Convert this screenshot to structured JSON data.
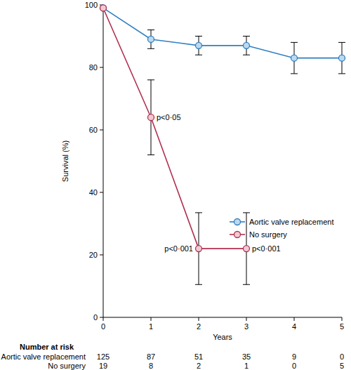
{
  "chart_data": {
    "type": "line",
    "x_label": "Years",
    "y_label": "Survival (%)",
    "xlim": [
      0,
      5
    ],
    "xticks": [
      0,
      1,
      2,
      3,
      4,
      5
    ],
    "ylim": [
      0,
      100
    ],
    "yticks": [
      0,
      20,
      40,
      60,
      80,
      100
    ],
    "grid": false,
    "legend": "right",
    "marker": "circle",
    "series": [
      {
        "name": "Aortic valve replacement",
        "color": "#2f7fc1",
        "x": [
          0,
          1,
          2,
          3,
          4,
          5
        ],
        "values": [
          99,
          89,
          87,
          87,
          83,
          83
        ],
        "error": [
          0,
          3,
          3,
          3,
          5,
          5
        ]
      },
      {
        "name": "No surgery",
        "color": "#b03050",
        "x": [
          0,
          1,
          2,
          3
        ],
        "values": [
          99,
          64,
          22,
          22
        ],
        "error": [
          0,
          12,
          11.5,
          11.5
        ]
      }
    ],
    "annotations": [
      {
        "text": "p<0·05",
        "x": 1,
        "y": 64
      },
      {
        "text": "p<0·001",
        "x": 2,
        "y": 22
      },
      {
        "text": "p<0·001",
        "x": 3,
        "y": 22
      }
    ],
    "number_at_risk": {
      "title": "Number at risk",
      "rows": [
        {
          "name": "Aortic valve replacement",
          "values": [
            125,
            87,
            51,
            35,
            9,
            0
          ]
        },
        {
          "name": "No surgery",
          "values": [
            19,
            8,
            2,
            1,
            0,
            5
          ]
        }
      ]
    }
  }
}
